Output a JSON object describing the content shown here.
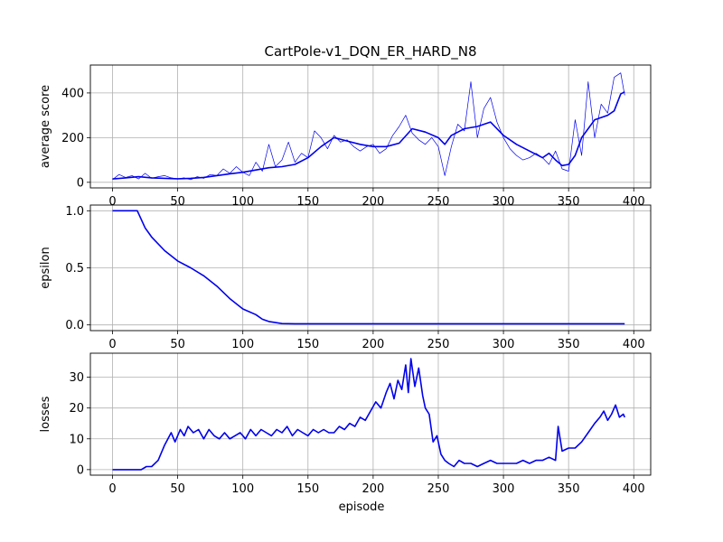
{
  "title": "CartPole-v1_DQN_ER_HARD_N8",
  "colors": {
    "line": "#0000ee",
    "grid": "#b0b0b0",
    "axes": "#000000",
    "background": "#ffffff"
  },
  "chart_data": [
    {
      "type": "line",
      "title": "CartPole-v1_DQN_ER_HARD_N8",
      "xlabel": "",
      "ylabel": "average score",
      "xlim": [
        -17,
        413
      ],
      "ylim": [
        -25,
        525
      ],
      "xticks": [
        0,
        50,
        100,
        150,
        200,
        250,
        300,
        350,
        400
      ],
      "yticks": [
        0,
        200,
        400
      ],
      "grid": true,
      "series": [
        {
          "style": "thin",
          "x": [
            0,
            5,
            10,
            15,
            20,
            25,
            30,
            35,
            40,
            45,
            50,
            55,
            60,
            65,
            70,
            75,
            80,
            85,
            90,
            95,
            100,
            105,
            110,
            115,
            120,
            125,
            130,
            135,
            140,
            145,
            150,
            155,
            160,
            165,
            170,
            175,
            180,
            185,
            190,
            195,
            200,
            205,
            210,
            215,
            220,
            225,
            230,
            235,
            240,
            245,
            250,
            255,
            260,
            265,
            270,
            275,
            280,
            285,
            290,
            295,
            300,
            305,
            310,
            315,
            320,
            325,
            330,
            335,
            340,
            345,
            350,
            355,
            360,
            365,
            370,
            375,
            380,
            385,
            390,
            393
          ],
          "y": [
            12,
            35,
            22,
            30,
            15,
            40,
            18,
            25,
            30,
            20,
            15,
            20,
            12,
            25,
            18,
            35,
            30,
            60,
            40,
            70,
            45,
            30,
            90,
            50,
            170,
            70,
            100,
            180,
            90,
            130,
            110,
            230,
            200,
            150,
            210,
            180,
            190,
            160,
            140,
            160,
            170,
            130,
            150,
            210,
            250,
            300,
            220,
            190,
            170,
            200,
            160,
            30,
            160,
            260,
            230,
            450,
            200,
            330,
            380,
            270,
            200,
            150,
            120,
            100,
            110,
            130,
            110,
            80,
            140,
            60,
            50,
            280,
            120,
            450,
            200,
            350,
            310,
            470,
            490,
            390
          ]
        },
        {
          "style": "bold",
          "x": [
            0,
            10,
            20,
            30,
            40,
            50,
            60,
            70,
            80,
            90,
            100,
            110,
            120,
            130,
            140,
            150,
            160,
            170,
            180,
            190,
            200,
            210,
            220,
            230,
            240,
            250,
            255,
            260,
            270,
            280,
            290,
            300,
            310,
            320,
            330,
            335,
            340,
            345,
            350,
            355,
            360,
            370,
            380,
            385,
            390,
            393
          ],
          "y": [
            15,
            20,
            25,
            20,
            18,
            16,
            18,
            22,
            30,
            38,
            45,
            55,
            65,
            70,
            80,
            110,
            160,
            200,
            185,
            170,
            160,
            160,
            175,
            240,
            225,
            200,
            170,
            210,
            240,
            250,
            270,
            210,
            170,
            140,
            110,
            130,
            100,
            75,
            80,
            120,
            200,
            280,
            300,
            320,
            395,
            405
          ]
        }
      ]
    },
    {
      "type": "line",
      "xlabel": "",
      "ylabel": "epsilon",
      "xlim": [
        -17,
        413
      ],
      "ylim": [
        -0.05,
        1.05
      ],
      "xticks": [
        0,
        50,
        100,
        150,
        200,
        250,
        300,
        350,
        400
      ],
      "yticks": [
        0.0,
        0.5,
        1.0
      ],
      "ytick_labels": [
        "0.0",
        "0.5",
        "1.0"
      ],
      "grid": true,
      "series": [
        {
          "style": "bold",
          "x": [
            0,
            19,
            25,
            30,
            40,
            50,
            60,
            70,
            80,
            90,
            100,
            110,
            115,
            120,
            130,
            140,
            393
          ],
          "y": [
            1.0,
            1.0,
            0.85,
            0.77,
            0.65,
            0.56,
            0.5,
            0.43,
            0.34,
            0.23,
            0.14,
            0.09,
            0.05,
            0.03,
            0.012,
            0.01,
            0.01
          ]
        }
      ]
    },
    {
      "type": "line",
      "xlabel": "episode",
      "ylabel": "losses",
      "xlim": [
        -17,
        413
      ],
      "ylim": [
        -1.8,
        37.8
      ],
      "xticks": [
        0,
        50,
        100,
        150,
        200,
        250,
        300,
        350,
        400
      ],
      "yticks": [
        0,
        10,
        20,
        30
      ],
      "grid": true,
      "series": [
        {
          "style": "bold",
          "x": [
            0,
            10,
            18,
            22,
            26,
            30,
            35,
            40,
            45,
            48,
            52,
            55,
            58,
            62,
            66,
            70,
            74,
            78,
            82,
            86,
            90,
            94,
            98,
            102,
            106,
            110,
            114,
            118,
            122,
            126,
            130,
            134,
            138,
            142,
            146,
            150,
            154,
            158,
            162,
            166,
            170,
            174,
            178,
            182,
            186,
            190,
            194,
            198,
            202,
            206,
            210,
            213,
            216,
            219,
            222,
            225,
            227,
            229,
            232,
            235,
            238,
            240,
            243,
            246,
            249,
            252,
            255,
            258,
            262,
            266,
            270,
            275,
            280,
            285,
            290,
            295,
            300,
            305,
            310,
            315,
            320,
            325,
            330,
            335,
            340,
            342,
            345,
            350,
            355,
            360,
            365,
            370,
            374,
            377,
            380,
            383,
            386,
            389,
            392,
            393
          ],
          "y": [
            0,
            0,
            0,
            0,
            1,
            1,
            3,
            8,
            12,
            9,
            13,
            11,
            14,
            12,
            13,
            10,
            13,
            11,
            10,
            12,
            10,
            11,
            12,
            10,
            13,
            11,
            13,
            12,
            11,
            13,
            12,
            14,
            11,
            13,
            12,
            11,
            13,
            12,
            13,
            12,
            12,
            14,
            13,
            15,
            14,
            17,
            16,
            19,
            22,
            20,
            25,
            28,
            23,
            29,
            26,
            34,
            25,
            36,
            27,
            33,
            24,
            20,
            18,
            9,
            11,
            5,
            3,
            2,
            1,
            3,
            2,
            2,
            1,
            2,
            3,
            2,
            2,
            2,
            2,
            3,
            2,
            3,
            3,
            4,
            3,
            14,
            6,
            7,
            7,
            9,
            12,
            15,
            17,
            19,
            16,
            18,
            21,
            17,
            18,
            17
          ]
        }
      ]
    }
  ]
}
